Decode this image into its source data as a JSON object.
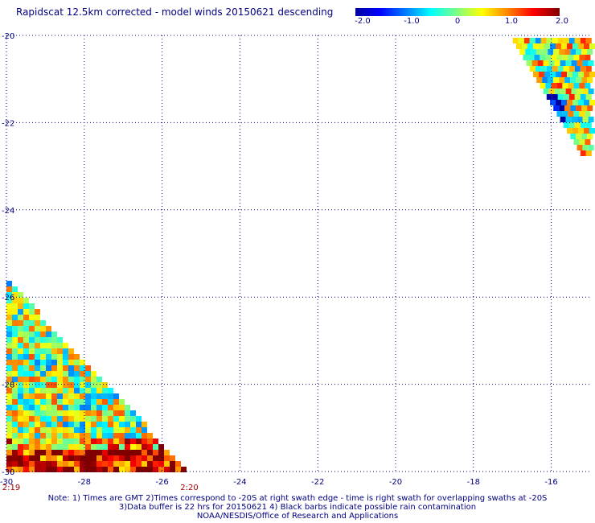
{
  "title": "Rapidscat 12.5km corrected - model winds 20150621 descending",
  "colorbar": {
    "ticks": [
      "-2.0",
      "-1.0",
      "0",
      "1.0",
      "2.0"
    ],
    "min": -2.0,
    "max": 2.0
  },
  "map": {
    "lon_range": [
      -30,
      -15
    ],
    "lat_range": [
      -30,
      -20
    ],
    "lon_ticks": [
      {
        "value": -30,
        "label": "-30"
      },
      {
        "value": -28,
        "label": "-28"
      },
      {
        "value": -26,
        "label": "-26"
      },
      {
        "value": -24,
        "label": "-24"
      },
      {
        "value": -22,
        "label": "-22"
      },
      {
        "value": -20,
        "label": "-20"
      },
      {
        "value": -18,
        "label": "-18"
      },
      {
        "value": -16,
        "label": "-16"
      }
    ],
    "lat_ticks": [
      {
        "value": -20,
        "label": "-20"
      },
      {
        "value": -22,
        "label": "-22"
      },
      {
        "value": -24,
        "label": "-24"
      },
      {
        "value": -26,
        "label": "-26"
      },
      {
        "value": -28,
        "label": "-28"
      },
      {
        "value": -30,
        "label": "-30"
      }
    ],
    "time_labels": [
      {
        "lon": -30,
        "label": "2:19"
      },
      {
        "lon": -25.3,
        "label": "2:20"
      }
    ]
  },
  "notes": [
    "Note: 1) Times are GMT 2)Times correspond to -20S at right swath edge - time is right swath for overlapping swaths at -20S",
    "3)Data buffer is 22 hrs for 20150621 4) Black barbs indicate possible rain contamination",
    "NOAA/NESDIS/Office of Research and Applications"
  ],
  "colors": {
    "text": "#000080",
    "time_label": "#a00000",
    "grid": "#000080"
  }
}
